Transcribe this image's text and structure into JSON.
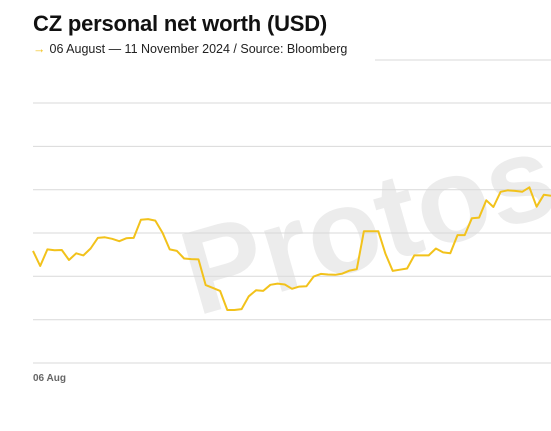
{
  "header": {
    "title": "CZ personal net worth (USD)",
    "subtitle_arrow": "→",
    "subtitle": "06 August — 11 November 2024 / Source: Bloomberg"
  },
  "watermark": {
    "text": "Protos"
  },
  "colors": {
    "line": "#f2c21b",
    "grid": "#d9d9d9",
    "watermark": "#ececec"
  },
  "chart_data": {
    "type": "line",
    "title": "CZ personal net worth (USD)",
    "subtitle": "06 August — 11 November 2024 / Source: Bloomberg",
    "xlabel": "",
    "ylabel": "",
    "grid": true,
    "x_tick_labels": [
      {
        "label": "06 Aug",
        "index": 0
      }
    ],
    "x_start_date": "2024-08-06",
    "x_end_date": "2024-11-11",
    "series": [
      {
        "values": [
          37,
          32,
          37.5,
          37.2,
          37.3,
          34,
          36.2,
          35.5,
          37.8,
          41.3,
          41.5,
          41,
          40.2,
          41.2,
          41.3,
          47.3,
          47.5,
          47,
          43,
          37.5,
          37,
          34.5,
          34.3,
          34.2,
          25.7,
          24.8,
          23.8,
          17.5,
          17.5,
          17.8,
          22,
          24,
          23.8,
          25.8,
          26.2,
          25.9,
          24.5,
          25.2,
          25.3,
          28.5,
          29.4,
          29.2,
          29.1,
          29.5,
          30.5,
          31,
          43.5,
          43.5,
          43.5,
          36,
          30.4,
          30.8,
          31.2,
          35.5,
          35.5,
          35.5,
          37.8,
          36.5,
          36.2,
          42.2,
          42.2,
          47.8,
          48,
          53.7,
          51.5,
          56.5,
          57,
          56.8,
          56.5,
          58,
          51.6,
          55.5,
          55.2
        ]
      }
    ],
    "ylim": [
      0,
      100
    ]
  }
}
